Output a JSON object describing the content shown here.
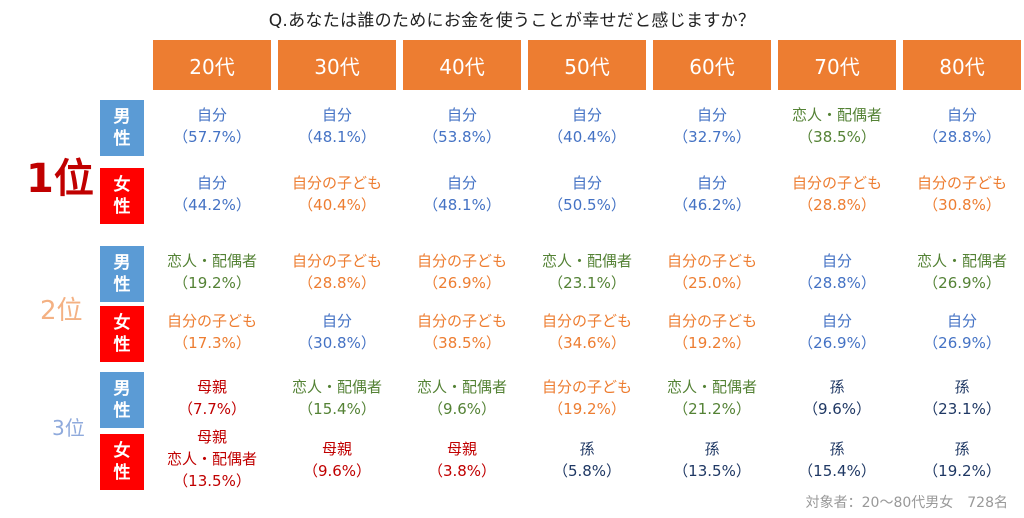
{
  "question": "Q.あなたは誰のためにお金を使うことが幸せだと感じますか？",
  "ages": [
    "20代",
    "30代",
    "40代",
    "50代",
    "60代",
    "70代",
    "80代"
  ],
  "genders": {
    "male": [
      "男",
      "性"
    ],
    "female": [
      "女",
      "性"
    ]
  },
  "ranks": [
    "1位",
    "2位",
    "3位"
  ],
  "colors": {
    "header": "#ed7d31",
    "male": "#5b9bd5",
    "female": "#ff0000",
    "self": "#4472c4",
    "partner": "#548235",
    "child": "#ed7d31",
    "mother": "#c00000",
    "grandchild": "#1f3864"
  },
  "rows": [
    {
      "rank": "1位",
      "gender": "male",
      "cells": [
        {
          "lines": [
            "自分",
            "（57.7%）"
          ],
          "cat": "self"
        },
        {
          "lines": [
            "自分",
            "（48.1%）"
          ],
          "cat": "self"
        },
        {
          "lines": [
            "自分",
            "（53.8%）"
          ],
          "cat": "self"
        },
        {
          "lines": [
            "自分",
            "（40.4%）"
          ],
          "cat": "self"
        },
        {
          "lines": [
            "自分",
            "（32.7%）"
          ],
          "cat": "self"
        },
        {
          "lines": [
            "恋人・配偶者",
            "（38.5%）"
          ],
          "cat": "partner"
        },
        {
          "lines": [
            "自分",
            "（28.8%）"
          ],
          "cat": "self"
        }
      ]
    },
    {
      "rank": "1位",
      "gender": "female",
      "cells": [
        {
          "lines": [
            "自分",
            "（44.2%）"
          ],
          "cat": "self"
        },
        {
          "lines": [
            "自分の子ども",
            "（40.4%）"
          ],
          "cat": "child"
        },
        {
          "lines": [
            "自分",
            "（48.1%）"
          ],
          "cat": "self"
        },
        {
          "lines": [
            "自分",
            "（50.5%）"
          ],
          "cat": "self"
        },
        {
          "lines": [
            "自分",
            "（46.2%）"
          ],
          "cat": "self"
        },
        {
          "lines": [
            "自分の子ども",
            "（28.8%）"
          ],
          "cat": "child"
        },
        {
          "lines": [
            "自分の子ども",
            "（30.8%）"
          ],
          "cat": "child"
        }
      ]
    },
    {
      "rank": "2位",
      "gender": "male",
      "cells": [
        {
          "lines": [
            "恋人・配偶者",
            "（19.2%）"
          ],
          "cat": "partner"
        },
        {
          "lines": [
            "自分の子ども",
            "（28.8%）"
          ],
          "cat": "child"
        },
        {
          "lines": [
            "自分の子ども",
            "（26.9%）"
          ],
          "cat": "child"
        },
        {
          "lines": [
            "恋人・配偶者",
            "（23.1%）"
          ],
          "cat": "partner"
        },
        {
          "lines": [
            "自分の子ども",
            "（25.0%）"
          ],
          "cat": "child"
        },
        {
          "lines": [
            "自分",
            "（28.8%）"
          ],
          "cat": "self"
        },
        {
          "lines": [
            "恋人・配偶者",
            "（26.9%）"
          ],
          "cat": "partner"
        }
      ]
    },
    {
      "rank": "2位",
      "gender": "female",
      "cells": [
        {
          "lines": [
            "自分の子ども",
            "（17.3%）"
          ],
          "cat": "child"
        },
        {
          "lines": [
            "自分",
            "（30.8%）"
          ],
          "cat": "self"
        },
        {
          "lines": [
            "自分の子ども",
            "（38.5%）"
          ],
          "cat": "child"
        },
        {
          "lines": [
            "自分の子ども",
            "（34.6%）"
          ],
          "cat": "child"
        },
        {
          "lines": [
            "自分の子ども",
            "（19.2%）"
          ],
          "cat": "child"
        },
        {
          "lines": [
            "自分",
            "（26.9%）"
          ],
          "cat": "self"
        },
        {
          "lines": [
            "自分",
            "（26.9%）"
          ],
          "cat": "self"
        }
      ]
    },
    {
      "rank": "3位",
      "gender": "male",
      "cells": [
        {
          "lines": [
            "母親",
            "（7.7%）"
          ],
          "cat": "mother"
        },
        {
          "lines": [
            "恋人・配偶者",
            "（15.4%）"
          ],
          "cat": "partner"
        },
        {
          "lines": [
            "恋人・配偶者",
            "（9.6%）"
          ],
          "cat": "partner"
        },
        {
          "lines": [
            "自分の子ども",
            "（19.2%）"
          ],
          "cat": "child"
        },
        {
          "lines": [
            "恋人・配偶者",
            "（21.2%）"
          ],
          "cat": "partner"
        },
        {
          "lines": [
            "孫",
            "（9.6%）"
          ],
          "cat": "grandchild"
        },
        {
          "lines": [
            "孫",
            "（23.1%）"
          ],
          "cat": "grandchild"
        }
      ]
    },
    {
      "rank": "3位",
      "gender": "female",
      "cells": [
        {
          "lines": [
            "母親",
            "恋人・配偶者",
            "（13.5%）"
          ],
          "cat": "mother"
        },
        {
          "lines": [
            "母親",
            "（9.6%）"
          ],
          "cat": "mother"
        },
        {
          "lines": [
            "母親",
            "（3.8%）"
          ],
          "cat": "mother"
        },
        {
          "lines": [
            "孫",
            "（5.8%）"
          ],
          "cat": "grandchild"
        },
        {
          "lines": [
            "孫",
            "（13.5%）"
          ],
          "cat": "grandchild"
        },
        {
          "lines": [
            "孫",
            "（15.4%）"
          ],
          "cat": "grandchild"
        },
        {
          "lines": [
            "孫",
            "（19.2%）"
          ],
          "cat": "grandchild"
        }
      ]
    }
  ],
  "footer": "対象者：20～80代男女　728名"
}
